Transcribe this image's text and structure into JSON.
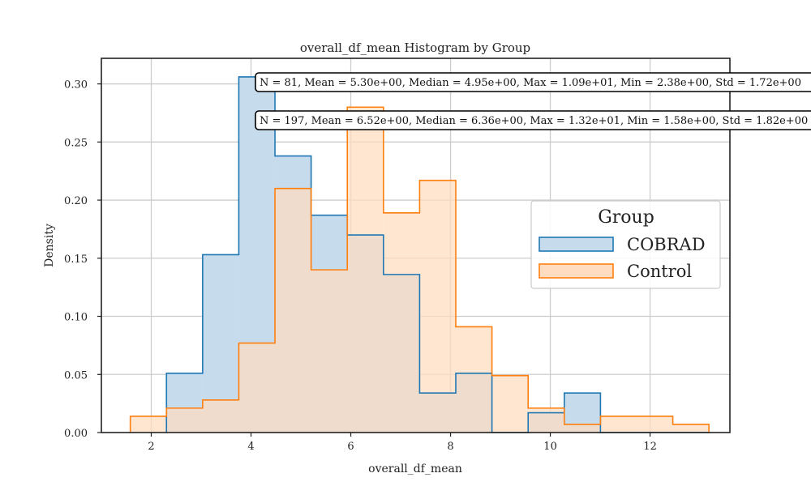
{
  "chart_data": {
    "type": "histogram",
    "title": "overall_df_mean Histogram by Group",
    "xlabel": "overall_df_mean",
    "ylabel": "Density",
    "xlim": [
      1.0,
      13.6
    ],
    "ylim": [
      0.0,
      0.322
    ],
    "xticks": [
      2,
      4,
      6,
      8,
      10,
      12
    ],
    "yticks": [
      0.0,
      0.05,
      0.1,
      0.15,
      0.2,
      0.25,
      0.3
    ],
    "ytick_labels": [
      "0.00",
      "0.05",
      "0.10",
      "0.15",
      "0.20",
      "0.25",
      "0.30"
    ],
    "grid": true,
    "bin_edges": [
      1.58,
      2.305,
      3.03,
      3.755,
      4.48,
      5.205,
      5.93,
      6.655,
      7.38,
      8.105,
      8.83,
      9.555,
      10.28,
      11.005,
      11.73,
      12.455,
      13.18
    ],
    "legend": {
      "title": "Group",
      "placement": "center-right"
    },
    "series": [
      {
        "name": "COBRAD",
        "color": "#1f77b4",
        "fill": "#c6dbec",
        "values": [
          0,
          0.051,
          0.153,
          0.306,
          0.238,
          0.187,
          0.17,
          0.136,
          0.034,
          0.051,
          0,
          0.017,
          0.034,
          0,
          0,
          0
        ]
      },
      {
        "name": "Control",
        "color": "#ff7f0e",
        "fill": "#ffdcbf",
        "values": [
          0.014,
          0.021,
          0.028,
          0.077,
          0.21,
          0.14,
          0.28,
          0.189,
          0.217,
          0.091,
          0.049,
          0.021,
          0.007,
          0.014,
          0.014,
          0.007
        ]
      }
    ],
    "annotations": [
      "N = 81, Mean = 5.30e+00, Median = 4.95e+00, Max = 1.09e+01, Min = 2.38e+00, Std = 1.72e+00",
      "N = 197, Mean = 6.52e+00, Median = 6.36e+00, Max = 1.32e+01, Min = 1.58e+00, Std = 1.82e+00"
    ]
  }
}
